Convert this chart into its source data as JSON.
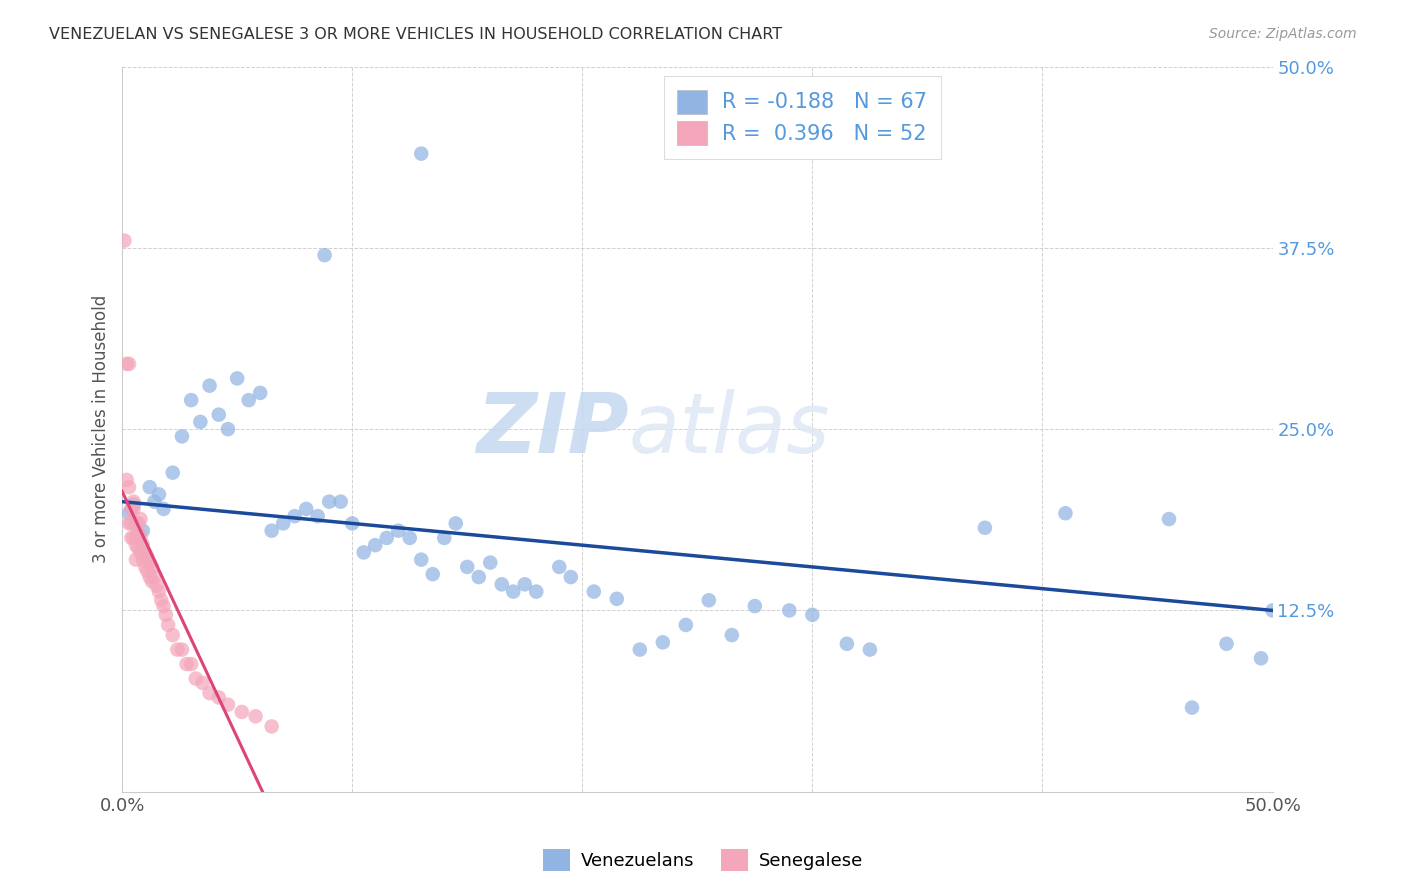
{
  "title": "VENEZUELAN VS SENEGALESE 3 OR MORE VEHICLES IN HOUSEHOLD CORRELATION CHART",
  "source": "Source: ZipAtlas.com",
  "ylabel": "3 or more Vehicles in Household",
  "xmin": 0.0,
  "xmax": 0.5,
  "ymin": 0.0,
  "ymax": 0.5,
  "watermark_zip": "ZIP",
  "watermark_atlas": "atlas",
  "legend_blue_label": "Venezuelans",
  "legend_pink_label": "Senegalese",
  "r_blue": -0.188,
  "n_blue": 67,
  "r_pink": 0.396,
  "n_pink": 52,
  "blue_color": "#92b4e3",
  "pink_color": "#f4a7ba",
  "trendline_blue_color": "#1a4a99",
  "trendline_pink_color": "#cc6688",
  "grid_color": "#cccccc",
  "right_tick_color": "#5599dd",
  "title_color": "#333333",
  "source_color": "#999999",
  "xtick_vals": [
    0.0,
    0.1,
    0.2,
    0.3,
    0.4,
    0.5
  ],
  "xtick_labels": [
    "0.0%",
    "",
    "",
    "",
    "",
    "50.0%"
  ],
  "right_ytick_vals": [
    0.125,
    0.25,
    0.375,
    0.5
  ],
  "right_ytick_labels": [
    "12.5%",
    "25.0%",
    "37.5%",
    "50.0%"
  ],
  "blue_x": [
    0.13,
    0.088,
    0.005,
    0.003,
    0.007,
    0.004,
    0.006,
    0.009,
    0.012,
    0.014,
    0.016,
    0.018,
    0.022,
    0.026,
    0.03,
    0.034,
    0.038,
    0.042,
    0.046,
    0.05,
    0.055,
    0.06,
    0.065,
    0.07,
    0.075,
    0.08,
    0.085,
    0.09,
    0.095,
    0.1,
    0.105,
    0.11,
    0.115,
    0.12,
    0.125,
    0.13,
    0.135,
    0.14,
    0.145,
    0.15,
    0.155,
    0.16,
    0.165,
    0.17,
    0.175,
    0.18,
    0.19,
    0.195,
    0.205,
    0.215,
    0.225,
    0.235,
    0.245,
    0.255,
    0.265,
    0.275,
    0.29,
    0.3,
    0.315,
    0.325,
    0.375,
    0.41,
    0.455,
    0.465,
    0.48,
    0.495,
    0.5
  ],
  "blue_y": [
    0.44,
    0.37,
    0.198,
    0.192,
    0.178,
    0.195,
    0.185,
    0.18,
    0.21,
    0.2,
    0.205,
    0.195,
    0.22,
    0.245,
    0.27,
    0.255,
    0.28,
    0.26,
    0.25,
    0.285,
    0.27,
    0.275,
    0.18,
    0.185,
    0.19,
    0.195,
    0.19,
    0.2,
    0.2,
    0.185,
    0.165,
    0.17,
    0.175,
    0.18,
    0.175,
    0.16,
    0.15,
    0.175,
    0.185,
    0.155,
    0.148,
    0.158,
    0.143,
    0.138,
    0.143,
    0.138,
    0.155,
    0.148,
    0.138,
    0.133,
    0.098,
    0.103,
    0.115,
    0.132,
    0.108,
    0.128,
    0.125,
    0.122,
    0.102,
    0.098,
    0.182,
    0.192,
    0.188,
    0.058,
    0.102,
    0.092,
    0.125
  ],
  "pink_x": [
    0.001,
    0.002,
    0.002,
    0.003,
    0.003,
    0.003,
    0.004,
    0.004,
    0.004,
    0.005,
    0.005,
    0.005,
    0.006,
    0.006,
    0.006,
    0.006,
    0.007,
    0.007,
    0.007,
    0.008,
    0.008,
    0.008,
    0.009,
    0.009,
    0.01,
    0.01,
    0.011,
    0.011,
    0.012,
    0.012,
    0.013,
    0.013,
    0.014,
    0.015,
    0.016,
    0.017,
    0.018,
    0.019,
    0.02,
    0.022,
    0.024,
    0.026,
    0.028,
    0.03,
    0.032,
    0.035,
    0.038,
    0.042,
    0.046,
    0.052,
    0.058,
    0.065
  ],
  "pink_y": [
    0.38,
    0.295,
    0.215,
    0.295,
    0.21,
    0.185,
    0.195,
    0.175,
    0.185,
    0.2,
    0.195,
    0.175,
    0.175,
    0.185,
    0.17,
    0.16,
    0.185,
    0.178,
    0.168,
    0.188,
    0.175,
    0.165,
    0.17,
    0.16,
    0.165,
    0.155,
    0.162,
    0.152,
    0.158,
    0.148,
    0.155,
    0.145,
    0.148,
    0.142,
    0.138,
    0.132,
    0.128,
    0.122,
    0.115,
    0.108,
    0.098,
    0.098,
    0.088,
    0.088,
    0.078,
    0.075,
    0.068,
    0.065,
    0.06,
    0.055,
    0.052,
    0.045
  ]
}
